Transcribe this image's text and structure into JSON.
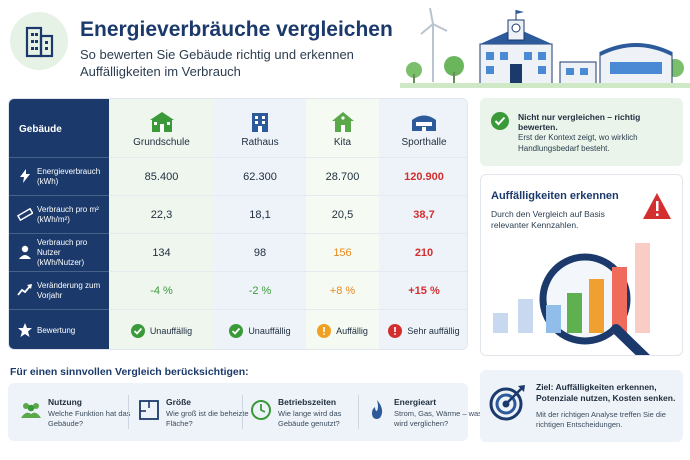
{
  "header": {
    "title": "Energieverbräuche vergleichen",
    "subtitle": "So bewerten Sie Gebäude richtig und erkennen Auffälligkeiten im Verbrauch"
  },
  "table": {
    "header_label": "Gebäude",
    "buildings": [
      "Grundschule",
      "Rathaus",
      "Kita",
      "Sporthalle"
    ],
    "building_icons": [
      "school-icon",
      "town-hall-icon",
      "kindergarten-icon",
      "sports-hall-icon"
    ],
    "rows": [
      {
        "label": "Energieverbrauch (kWh)",
        "icon": "lightning-icon",
        "values": [
          "85.400",
          "62.300",
          "28.700",
          "120.900"
        ],
        "status": [
          "",
          "",
          "",
          "bad"
        ]
      },
      {
        "label": "Verbrauch pro m² (kWh/m²)",
        "icon": "ruler-icon",
        "values": [
          "22,3",
          "18,1",
          "20,5",
          "38,7"
        ],
        "status": [
          "",
          "",
          "",
          "bad"
        ]
      },
      {
        "label": "Verbrauch pro Nutzer (kWh/Nutzer)",
        "icon": "user-icon",
        "values": [
          "134",
          "98",
          "156",
          "210"
        ],
        "status": [
          "",
          "",
          "warn",
          "bad"
        ]
      },
      {
        "label": "Veränderung zum Vorjahr",
        "icon": "trend-icon",
        "values": [
          "-4 %",
          "-2 %",
          "+8 %",
          "+15 %"
        ],
        "status": [
          "good",
          "good",
          "warn",
          "bad"
        ]
      },
      {
        "label": "Bewertung",
        "icon": "star-icon",
        "values": [
          "Unauffällig",
          "Unauffällig",
          "Auffällig",
          "Sehr auffällig"
        ],
        "status": [
          "good",
          "good",
          "warn",
          "bad"
        ]
      }
    ]
  },
  "panel_context": {
    "title": "Nicht nur vergleichen – richtig bewerten.",
    "text": "Erst der Kontext zeigt, wo wirklich Handlungsbedarf besteht."
  },
  "panel_anomaly": {
    "title": "Auffälligkeiten erkennen",
    "text": "Durch den Vergleich auf Basis relevanter Kennzahlen."
  },
  "factors_title": "Für einen sinnvollen Vergleich berücksichtigen:",
  "factors": [
    {
      "name": "Nutzung",
      "question": "Welche Funktion hat das Gebäude?",
      "icon": "people-icon"
    },
    {
      "name": "Größe",
      "question": "Wie groß ist die beheizte Fläche?",
      "icon": "floor-plan-icon"
    },
    {
      "name": "Betriebszeiten",
      "question": "Wie lange wird das Gebäude genutzt?",
      "icon": "clock-icon"
    },
    {
      "name": "Energieart",
      "question": "Strom, Gas, Wärme – was wird verglichen?",
      "icon": "flame-icon"
    }
  ],
  "panel_goal": {
    "title": "Ziel: Auffälligkeiten erkennen, Potenziale nutzen, Kosten senken.",
    "text": "Mit der richtigen Analyse treffen Sie die richtigen Entscheidungen."
  },
  "colors": {
    "navy": "#1b3a6b",
    "good": "#3a9a3a",
    "warn": "#e8891d",
    "bad": "#d32f2f"
  }
}
